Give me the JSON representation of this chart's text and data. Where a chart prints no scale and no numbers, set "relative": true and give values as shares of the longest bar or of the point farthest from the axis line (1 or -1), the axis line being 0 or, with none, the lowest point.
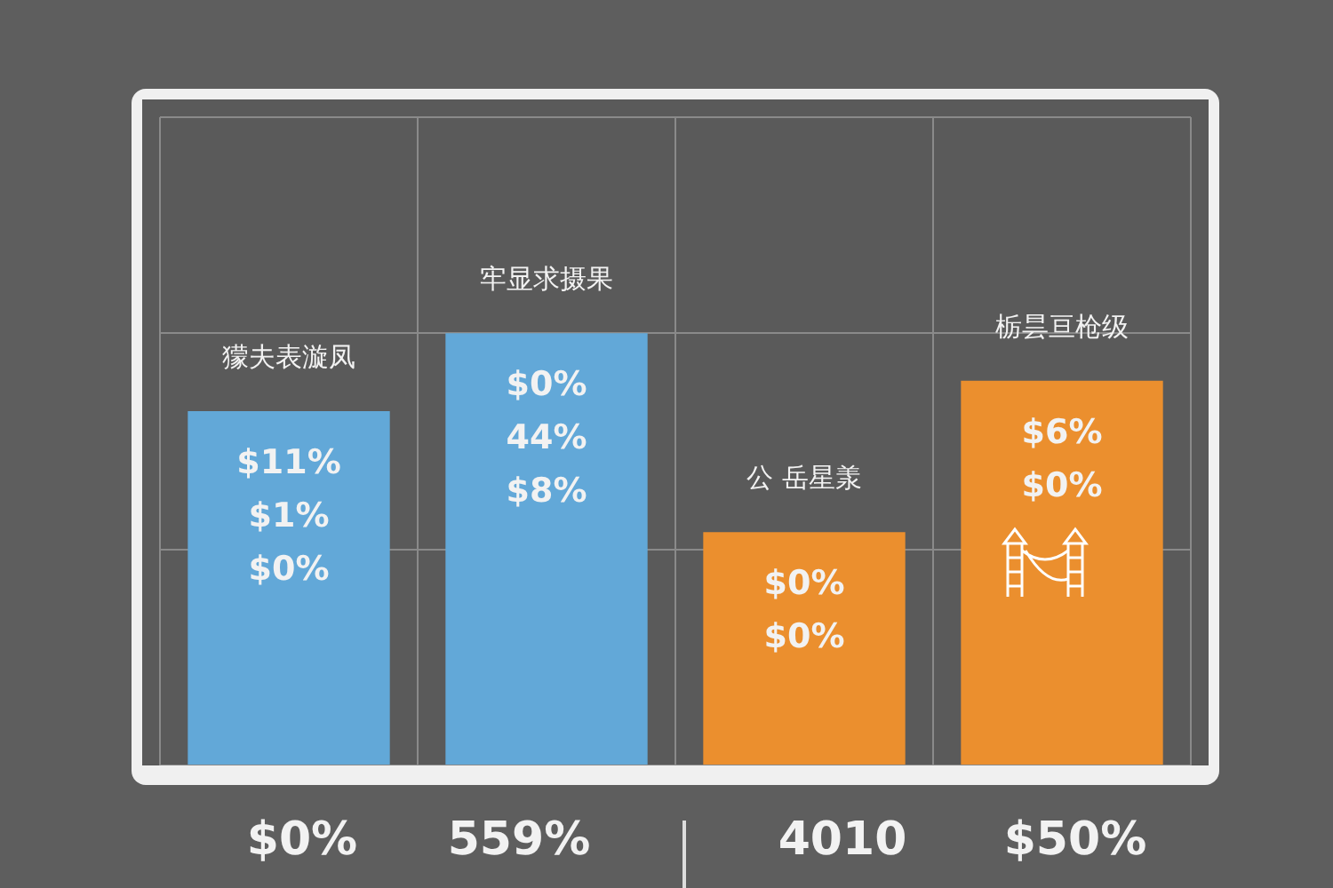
{
  "chart_data": {
    "type": "bar",
    "relative": true,
    "grid": true,
    "categories": [
      "獴夫表漩凤",
      "牢显求摄果",
      "公 岳星羕",
      "栃昙亘枪级"
    ],
    "values": [
      0.82,
      1,
      0.54,
      0.89
    ],
    "colors": [
      "#62a8d8",
      "#62a8d8",
      "#eb8f2e",
      "#eb8f2e"
    ],
    "annotations": [
      "$11%",
      "$1%",
      "$0%",
      "$0%",
      "44%",
      "$8%",
      "$0%",
      "$0%",
      "$6%",
      "$0%",
      "$0%",
      "559%",
      "4010",
      "$50%"
    ]
  }
}
